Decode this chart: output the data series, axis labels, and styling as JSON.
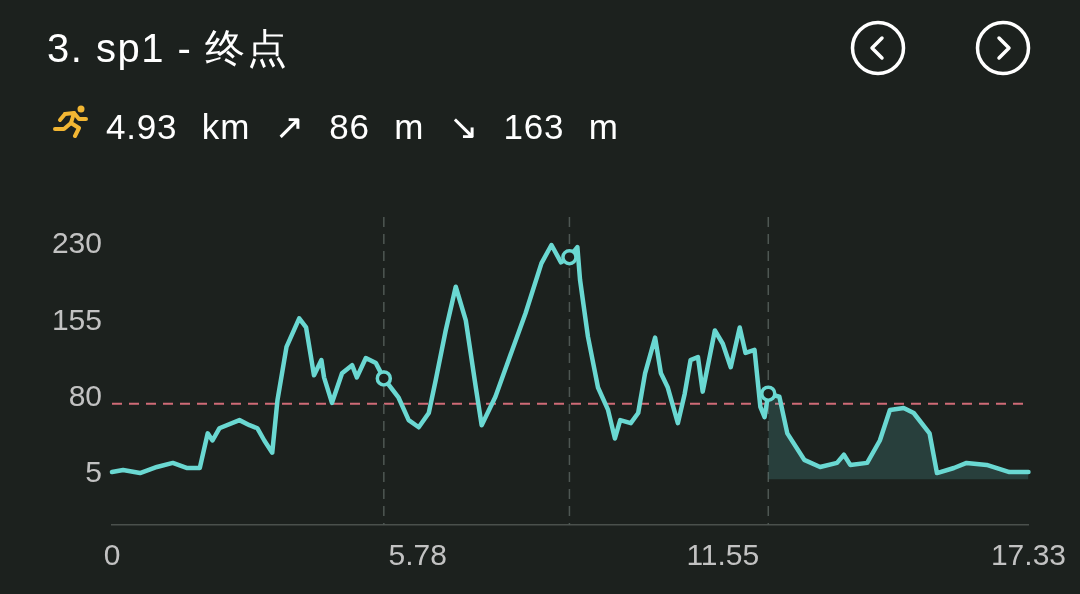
{
  "chart_data": {
    "type": "line",
    "title": "3. sp1 - 终点",
    "subtitle": "4.93 km ↗ 86 m ↘ 163 m",
    "series": [
      {
        "color": "#6ad8d2",
        "x": [
          0,
          0.21,
          0.53,
          0.85,
          1.15,
          1.41,
          1.66,
          1.81,
          1.9,
          2.03,
          2.41,
          2.6,
          2.75,
          2.88,
          3.03,
          3.13,
          3.3,
          3.54,
          3.67,
          3.82,
          3.96,
          4.01,
          4.16,
          4.35,
          4.54,
          4.63,
          4.8,
          4.99,
          5.14,
          5.42,
          5.61,
          5.8,
          5.99,
          6.12,
          6.31,
          6.5,
          6.69,
          6.88,
          6.99,
          7.25,
          7.5,
          7.82,
          8.12,
          8.31,
          8.49,
          8.65,
          8.8,
          8.85,
          9.0,
          9.19,
          9.38,
          9.51,
          9.61,
          9.81,
          9.95,
          10.08,
          10.27,
          10.38,
          10.51,
          10.7,
          10.83,
          10.94,
          11.08,
          11.17,
          11.4,
          11.55,
          11.7,
          11.87,
          11.98,
          12.15,
          12.26,
          12.34,
          12.41
        ],
        "values": [
          7,
          9,
          6,
          12,
          16,
          11,
          11,
          45,
          38,
          50,
          58,
          53,
          50,
          38,
          26,
          78,
          130,
          158,
          149,
          102,
          117,
          100,
          75,
          104,
          112,
          100,
          119,
          114,
          99,
          80,
          58,
          51,
          65,
          97,
          146,
          189,
          156,
          90,
          53,
          81,
          117,
          163,
          212,
          230,
          213,
          218,
          228,
          196,
          140,
          90,
          68,
          40,
          58,
          55,
          65,
          104,
          139,
          104,
          90,
          55,
          84,
          117,
          120,
          86,
          146,
          133,
          110,
          149,
          124,
          127,
          71,
          61,
          84
        ]
      },
      {
        "type": "area",
        "color": "#6ad8d2",
        "x": [
          12.41,
          12.62,
          12.77,
          13.09,
          13.39,
          13.71,
          13.84,
          13.96,
          14.28,
          14.52,
          14.71,
          14.97,
          15.16,
          15.46,
          15.6,
          15.92,
          16.16,
          16.54,
          16.97,
          17.33
        ],
        "values": [
          84,
          81,
          45,
          19,
          12,
          16,
          24,
          14,
          16,
          38,
          68,
          70,
          65,
          45,
          6,
          11,
          16,
          14,
          7,
          7
        ]
      },
      {
        "type": "scatter",
        "color": "#6ad8d2",
        "marker": "circle",
        "x": [
          5.14,
          8.65,
          12.41
        ],
        "values": [
          99,
          218,
          84
        ]
      }
    ],
    "xlim": [
      0,
      17.33
    ],
    "xticks": [
      0,
      5.78,
      11.55,
      17.33
    ],
    "ylim": [
      -45,
      230
    ],
    "yticks": [
      5,
      80,
      155,
      230
    ],
    "grid": false,
    "legend": false,
    "ref_lines": [
      {
        "axis": "y",
        "value": 74,
        "color": "#cf6b77",
        "line_style": "dashed"
      },
      {
        "axis": "x",
        "value": 5.14,
        "color": "#4e5753",
        "line_style": "dashed"
      },
      {
        "axis": "x",
        "value": 8.65,
        "color": "#4e5753",
        "line_style": "dashed"
      },
      {
        "axis": "x",
        "value": 12.41,
        "color": "#4e5753",
        "line_style": "dashed"
      }
    ]
  }
}
